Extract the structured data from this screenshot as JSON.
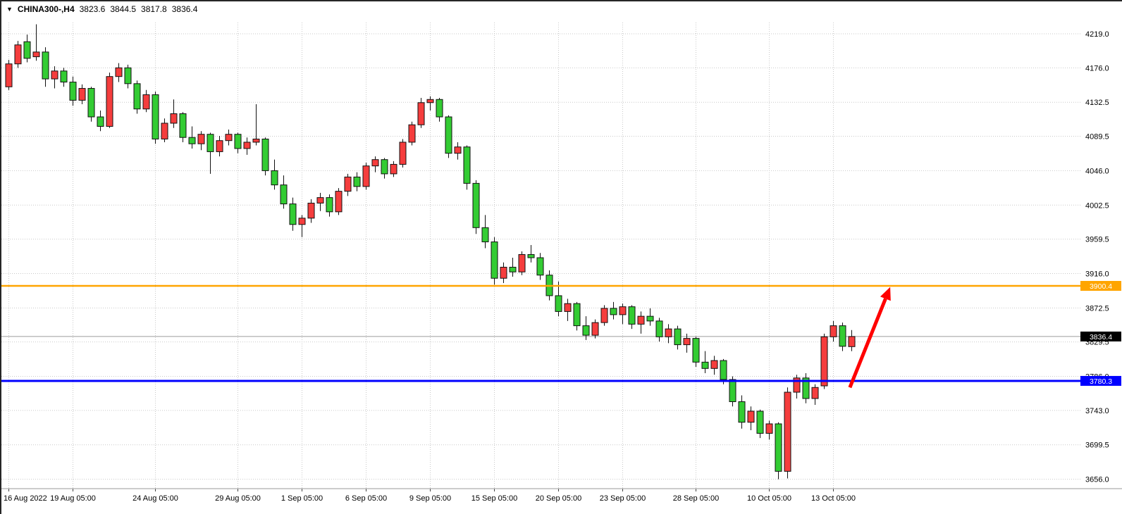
{
  "header": {
    "dropdown_icon": "▼",
    "symbol_period": "CHINA300-,H4",
    "open": "3823.6",
    "high": "3844.5",
    "low": "3817.8",
    "close": "3836.4"
  },
  "colors": {
    "bull": "#f53d3d",
    "bear": "#33cc33",
    "candle_outline": "#111111",
    "wick": "#111111",
    "grid": "#c9c9c9",
    "axis_text": "#000000",
    "separator": "#999999",
    "tick_mark": "#444444",
    "resistance_line": "#ffa500",
    "support_line": "#0000ff",
    "current_line": "#9c9c9c",
    "current_tag_bg": "#000000",
    "tag_text": "#ffffff",
    "arrow": "#ff0000"
  },
  "price_axis": {
    "tags": [
      {
        "name": "resistance-price-tag",
        "value": "3900.4",
        "price": 3900.4,
        "bg": "#ffa500"
      },
      {
        "name": "current-price-tag",
        "value": "3836.4",
        "price": 3836.4,
        "bg": "#000000"
      },
      {
        "name": "support-price-tag",
        "value": "3780.3",
        "price": 3780.3,
        "bg": "#0000ff"
      }
    ]
  },
  "chart_data": {
    "type": "candlestick",
    "title": "CHINA300-,H4",
    "symbol": "CHINA300-",
    "timeframe": "H4",
    "color_convention": "red = bullish, green = bearish",
    "y_axis": {
      "min": 3644,
      "max": 4233,
      "tick_labels": [
        4219.0,
        4176.0,
        4132.5,
        4089.5,
        4046.0,
        4002.5,
        3959.5,
        3916.0,
        3872.5,
        3829.5,
        3786.0,
        3743.0,
        3699.5,
        3656.0
      ]
    },
    "x_ticks": [
      {
        "label": "16 Aug 2022",
        "index": 0
      },
      {
        "label": "19 Aug 05:00",
        "index": 7
      },
      {
        "label": "24 Aug 05:00",
        "index": 16
      },
      {
        "label": "29 Aug 05:00",
        "index": 25
      },
      {
        "label": "1 Sep 05:00",
        "index": 32
      },
      {
        "label": "6 Sep 05:00",
        "index": 39
      },
      {
        "label": "9 Sep 05:00",
        "index": 46
      },
      {
        "label": "15 Sep 05:00",
        "index": 53
      },
      {
        "label": "20 Sep 05:00",
        "index": 60
      },
      {
        "label": "23 Sep 05:00",
        "index": 67
      },
      {
        "label": "28 Sep 05:00",
        "index": 75
      },
      {
        "label": "10 Oct 05:00",
        "index": 83
      },
      {
        "label": "13 Oct 05:00",
        "index": 90
      }
    ],
    "ohlc": [
      [
        4152,
        4186,
        4148,
        4181
      ],
      [
        4181,
        4210,
        4176,
        4205
      ],
      [
        4209,
        4218,
        4183,
        4188
      ],
      [
        4190,
        4231,
        4185,
        4196
      ],
      [
        4196,
        4202,
        4152,
        4162
      ],
      [
        4162,
        4178,
        4150,
        4172
      ],
      [
        4172,
        4176,
        4152,
        4158
      ],
      [
        4158,
        4165,
        4128,
        4135
      ],
      [
        4135,
        4155,
        4130,
        4150
      ],
      [
        4150,
        4152,
        4108,
        4114
      ],
      [
        4114,
        4122,
        4096,
        4102
      ],
      [
        4102,
        4170,
        4100,
        4165
      ],
      [
        4165,
        4182,
        4158,
        4176
      ],
      [
        4176,
        4180,
        4150,
        4156
      ],
      [
        4156,
        4160,
        4118,
        4124
      ],
      [
        4124,
        4148,
        4120,
        4142
      ],
      [
        4142,
        4146,
        4080,
        4086
      ],
      [
        4086,
        4112,
        4082,
        4106
      ],
      [
        4106,
        4136,
        4100,
        4118
      ],
      [
        4118,
        4120,
        4082,
        4088
      ],
      [
        4088,
        4102,
        4074,
        4080
      ],
      [
        4080,
        4096,
        4072,
        4092
      ],
      [
        4092,
        4094,
        4042,
        4070
      ],
      [
        4070,
        4090,
        4064,
        4084
      ],
      [
        4084,
        4098,
        4078,
        4092
      ],
      [
        4092,
        4094,
        4068,
        4074
      ],
      [
        4074,
        4088,
        4066,
        4082
      ],
      [
        4082,
        4130,
        4078,
        4086
      ],
      [
        4086,
        4088,
        4040,
        4046
      ],
      [
        4046,
        4060,
        4022,
        4028
      ],
      [
        4028,
        4040,
        3998,
        4004
      ],
      [
        4004,
        4012,
        3970,
        3978
      ],
      [
        3978,
        3990,
        3962,
        3986
      ],
      [
        3986,
        4010,
        3980,
        4005
      ],
      [
        4005,
        4018,
        3995,
        4012
      ],
      [
        4012,
        4016,
        3988,
        3994
      ],
      [
        3994,
        4024,
        3990,
        4020
      ],
      [
        4020,
        4042,
        4014,
        4038
      ],
      [
        4038,
        4044,
        4020,
        4026
      ],
      [
        4026,
        4056,
        4022,
        4052
      ],
      [
        4052,
        4064,
        4044,
        4060
      ],
      [
        4060,
        4062,
        4036,
        4042
      ],
      [
        4042,
        4058,
        4038,
        4054
      ],
      [
        4054,
        4086,
        4050,
        4082
      ],
      [
        4082,
        4108,
        4078,
        4104
      ],
      [
        4104,
        4138,
        4100,
        4132
      ],
      [
        4132,
        4140,
        4122,
        4136
      ],
      [
        4136,
        4138,
        4108,
        4114
      ],
      [
        4114,
        4116,
        4062,
        4068
      ],
      [
        4068,
        4082,
        4060,
        4076
      ],
      [
        4076,
        4078,
        4022,
        4030
      ],
      [
        4030,
        4034,
        3966,
        3974
      ],
      [
        3974,
        3990,
        3948,
        3956
      ],
      [
        3956,
        3962,
        3902,
        3910
      ],
      [
        3910,
        3930,
        3904,
        3924
      ],
      [
        3924,
        3936,
        3912,
        3918
      ],
      [
        3918,
        3944,
        3914,
        3940
      ],
      [
        3940,
        3952,
        3930,
        3936
      ],
      [
        3936,
        3942,
        3908,
        3914
      ],
      [
        3914,
        3920,
        3882,
        3888
      ],
      [
        3888,
        3906,
        3862,
        3868
      ],
      [
        3868,
        3884,
        3856,
        3878
      ],
      [
        3878,
        3880,
        3844,
        3850
      ],
      [
        3850,
        3862,
        3832,
        3838
      ],
      [
        3838,
        3858,
        3834,
        3854
      ],
      [
        3854,
        3876,
        3850,
        3872
      ],
      [
        3872,
        3880,
        3858,
        3864
      ],
      [
        3864,
        3878,
        3852,
        3874
      ],
      [
        3874,
        3876,
        3846,
        3852
      ],
      [
        3852,
        3868,
        3840,
        3862
      ],
      [
        3862,
        3872,
        3850,
        3856
      ],
      [
        3856,
        3860,
        3830,
        3836
      ],
      [
        3836,
        3852,
        3828,
        3846
      ],
      [
        3846,
        3850,
        3820,
        3826
      ],
      [
        3826,
        3840,
        3816,
        3834
      ],
      [
        3834,
        3836,
        3798,
        3804
      ],
      [
        3804,
        3818,
        3790,
        3796
      ],
      [
        3796,
        3812,
        3788,
        3806
      ],
      [
        3806,
        3808,
        3776,
        3782
      ],
      [
        3782,
        3786,
        3748,
        3754
      ],
      [
        3754,
        3762,
        3720,
        3728
      ],
      [
        3728,
        3748,
        3718,
        3742
      ],
      [
        3742,
        3744,
        3708,
        3714
      ],
      [
        3714,
        3730,
        3706,
        3726
      ],
      [
        3726,
        3728,
        3656,
        3666
      ],
      [
        3666,
        3772,
        3657,
        3766
      ],
      [
        3766,
        3788,
        3758,
        3784
      ],
      [
        3784,
        3790,
        3752,
        3758
      ],
      [
        3758,
        3776,
        3750,
        3772
      ],
      [
        3774,
        3840,
        3770,
        3836
      ],
      [
        3836,
        3856,
        3830,
        3850
      ],
      [
        3850,
        3854,
        3818,
        3824
      ],
      [
        3823.6,
        3844.5,
        3817.8,
        3836.4
      ]
    ],
    "lines": [
      {
        "name": "current-price-line",
        "price": 3836.4,
        "color": "#9c9c9c",
        "width": 1,
        "layer": "below"
      },
      {
        "name": "resistance-line",
        "price": 3900.4,
        "color": "#ffa500",
        "width": 2.5,
        "layer": "above"
      },
      {
        "name": "support-line",
        "price": 3780.3,
        "color": "#0000ff",
        "width": 3,
        "layer": "above"
      }
    ],
    "annotations": [
      {
        "type": "arrow",
        "name": "bullish-projection-arrow",
        "from_index": 91.8,
        "from_price": 3772,
        "to_index": 96.2,
        "to_price": 3899,
        "color": "#ff0000",
        "width": 5
      }
    ]
  }
}
